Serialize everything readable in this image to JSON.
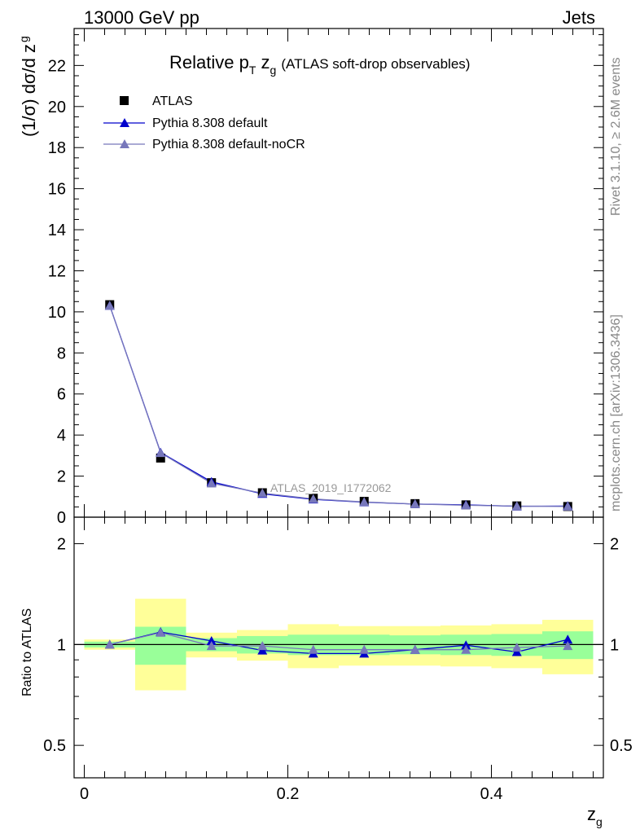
{
  "header": {
    "left": "13000 GeV pp",
    "right": "Jets"
  },
  "side_labels": {
    "rivet": "Rivet 3.1.10, ≥ 2.6M events",
    "mcplots": "mcplots.cern.ch [arXiv:1306.3436]"
  },
  "chart_data": [
    {
      "type": "scatter",
      "title": "Relative pT zg (ATLAS soft-drop observables)",
      "title_parts": {
        "main": "Relative p",
        "sub1": "T",
        "mid": " z",
        "sub2": "g",
        "paren": "(ATLAS soft-drop observables)"
      },
      "ylabel": "(1/σ) dσ/d z g",
      "ylabel_parts": {
        "main": "(1/σ) dσ/d z",
        "sub": "g"
      },
      "watermark": "ATLAS_2019_I1772062",
      "xlim": [
        -0.01,
        0.51
      ],
      "ylim": [
        0,
        23.8
      ],
      "yticks": [
        0,
        2,
        4,
        6,
        8,
        10,
        12,
        14,
        16,
        18,
        20,
        22
      ],
      "yticklabels": [
        "0",
        "2",
        "4",
        "6",
        "8",
        "10",
        "12",
        "14",
        "16",
        "18",
        "20",
        "22"
      ],
      "legend": [
        "ATLAS",
        "Pythia 8.308 default",
        "Pythia 8.308 default-noCR"
      ],
      "legend_position": "top-left",
      "x": [
        0.025,
        0.075,
        0.125,
        0.175,
        0.225,
        0.275,
        0.325,
        0.375,
        0.425,
        0.475
      ],
      "series": [
        {
          "name": "ATLAS",
          "marker": "square",
          "color": "#000000",
          "values": [
            10.35,
            2.88,
            1.68,
            1.19,
            0.92,
            0.77,
            0.66,
            0.6,
            0.55,
            0.52
          ]
        },
        {
          "name": "Pythia 8.308 default",
          "marker": "triangle",
          "color": "#0000cc",
          "values": [
            10.3,
            3.15,
            1.72,
            1.14,
            0.87,
            0.73,
            0.64,
            0.6,
            0.53,
            0.54
          ]
        },
        {
          "name": "Pythia 8.308 default-noCR",
          "marker": "triangle",
          "color": "#7777bb",
          "values": [
            10.3,
            3.13,
            1.65,
            1.17,
            0.89,
            0.74,
            0.64,
            0.58,
            0.54,
            0.52
          ]
        }
      ]
    },
    {
      "type": "line",
      "ylabel": "Ratio to ATLAS",
      "xlabel": "z g",
      "xlabel_parts": {
        "main": "z",
        "sub": "g"
      },
      "scale": "log",
      "xlim": [
        -0.01,
        0.51
      ],
      "ylim": [
        0.4,
        2.4
      ],
      "xticks": [
        0,
        0.2,
        0.4
      ],
      "xticklabels": [
        "0",
        "0.2",
        "0.4"
      ],
      "yticks": [
        0.5,
        1,
        2
      ],
      "yticklabels": [
        "0.5",
        "1",
        "2"
      ],
      "bins": [
        [
          0.0,
          0.05
        ],
        [
          0.05,
          0.1
        ],
        [
          0.1,
          0.15
        ],
        [
          0.15,
          0.2
        ],
        [
          0.2,
          0.25
        ],
        [
          0.25,
          0.3
        ],
        [
          0.3,
          0.35
        ],
        [
          0.35,
          0.4
        ],
        [
          0.4,
          0.45
        ],
        [
          0.45,
          0.5
        ]
      ],
      "band_inner": [
        [
          0.98,
          1.02
        ],
        [
          0.87,
          1.13
        ],
        [
          0.955,
          1.045
        ],
        [
          0.94,
          1.06
        ],
        [
          0.93,
          1.07
        ],
        [
          0.93,
          1.07
        ],
        [
          0.935,
          1.065
        ],
        [
          0.93,
          1.07
        ],
        [
          0.925,
          1.075
        ],
        [
          0.905,
          1.095
        ]
      ],
      "band_outer": [
        [
          0.965,
          1.035
        ],
        [
          0.73,
          1.37
        ],
        [
          0.915,
          1.085
        ],
        [
          0.895,
          1.105
        ],
        [
          0.85,
          1.15
        ],
        [
          0.865,
          1.135
        ],
        [
          0.865,
          1.135
        ],
        [
          0.86,
          1.14
        ],
        [
          0.85,
          1.15
        ],
        [
          0.815,
          1.185
        ]
      ],
      "band_colors": {
        "inner": "#99ff99",
        "outer": "#ffff99"
      },
      "x": [
        0.025,
        0.075,
        0.125,
        0.175,
        0.225,
        0.275,
        0.325,
        0.375,
        0.425,
        0.475
      ],
      "series": [
        {
          "name": "Pythia 8.308 default",
          "color": "#0000cc",
          "values": [
            1.0,
            1.09,
            1.025,
            0.96,
            0.94,
            0.94,
            0.965,
            0.995,
            0.95,
            1.035
          ]
        },
        {
          "name": "Pythia 8.308 default-noCR",
          "color": "#7777bb",
          "values": [
            1.0,
            1.085,
            0.99,
            0.99,
            0.965,
            0.965,
            0.965,
            0.965,
            0.98,
            0.99
          ]
        }
      ]
    }
  ]
}
